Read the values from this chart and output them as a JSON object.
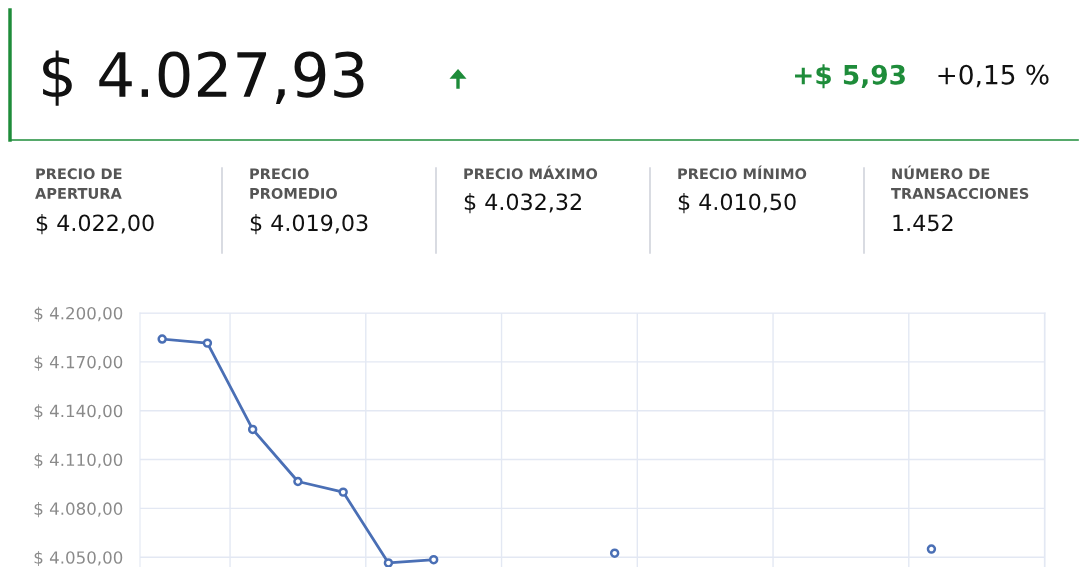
{
  "chart_data": [
    {
      "type": "other",
      "title": "$ 4.027,93",
      "color": "#1e8c3a",
      "annotations": [
        "+$ 5,93",
        "+0,15 %",
        "PRECIO DE\nAPERTURA",
        "$ 4.022,00",
        "PRECIO\nPROMEDIO",
        "$ 4.019,03",
        "PRECIO MÁXIMO",
        "$ 4.032,32",
        "PRECIO MÍNIMO",
        "$ 4.010,50",
        "NÚMERO DE\nTRANSACCIONES",
        "1.452"
      ]
    },
    {
      "type": "line",
      "categories": [
        null,
        null,
        null,
        null,
        null,
        null,
        null,
        null,
        null,
        null,
        null,
        null,
        null,
        null,
        null,
        null,
        null,
        null,
        null,
        null
      ],
      "series": [
        {
          "color": "#4a6fb5",
          "values": [
            4184,
            4181.5,
            4128.5,
            4096.5,
            4090,
            4046.5,
            4048.5,
            null,
            null,
            null,
            4052.5,
            null,
            null,
            null,
            null,
            null,
            null,
            4055,
            null,
            null
          ]
        }
      ],
      "ylim": [
        4044,
        4200
      ],
      "yticks": [
        {
          "value": 4050,
          "label": "$ 4.050,00"
        },
        {
          "value": 4080,
          "label": "$ 4.080,00"
        },
        {
          "value": 4110,
          "label": "$ 4.110,00"
        },
        {
          "value": 4140,
          "label": "$ 4.140,00"
        },
        {
          "value": 4170,
          "label": "$ 4.170,00"
        },
        {
          "value": 4200,
          "label": "$ 4.200,00"
        }
      ],
      "tick_labels": "y",
      "grid": true,
      "marker": "circle",
      "line_style": "solid"
    }
  ]
}
